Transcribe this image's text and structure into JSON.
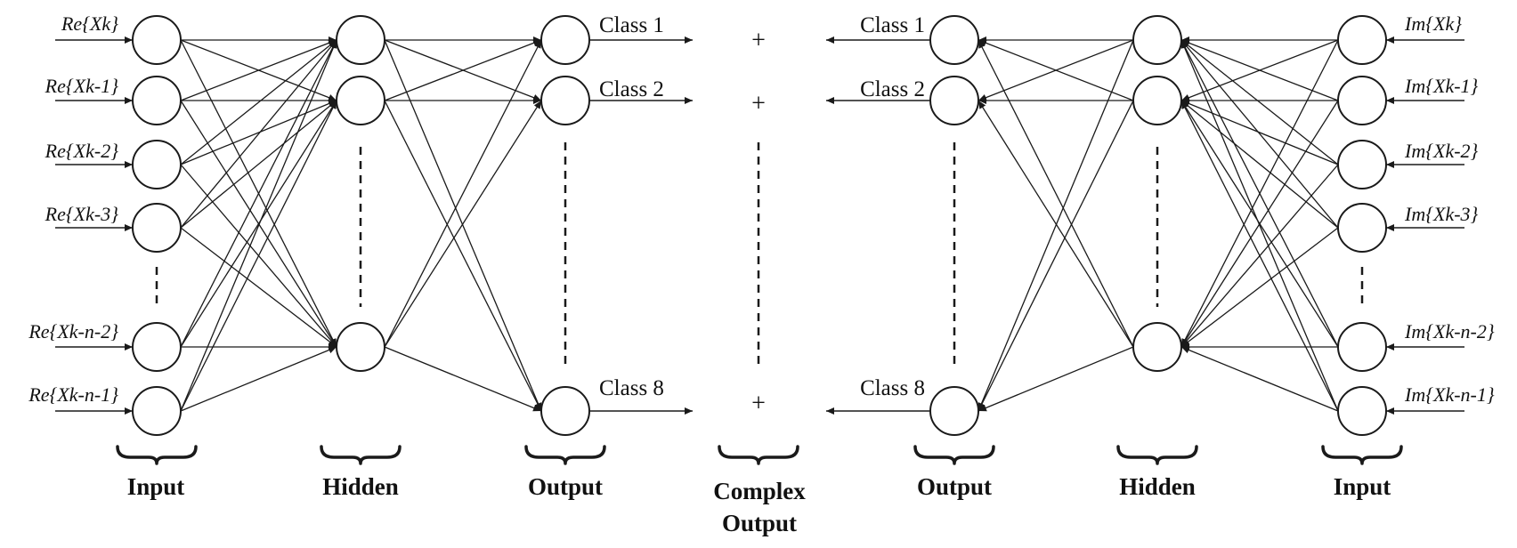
{
  "left_network": {
    "inputs": [
      "Re{Xk}",
      "Re{Xk-1}",
      "Re{Xk-2}",
      "Re{Xk-3}",
      "Re{Xk-n-2}",
      "Re{Xk-n-1}"
    ],
    "outputs": [
      "Class 1",
      "Class 2",
      "Class 8"
    ],
    "group_labels": {
      "input": "Input",
      "hidden": "Hidden",
      "output": "Output"
    }
  },
  "right_network": {
    "inputs": [
      "Im{Xk}",
      "Im{Xk-1}",
      "Im{Xk-2}",
      "Im{Xk-3}",
      "Im{Xk-n-2}",
      "Im{Xk-n-1}"
    ],
    "outputs": [
      "Class 1",
      "Class 2",
      "Class 8"
    ],
    "group_labels": {
      "input": "Input",
      "hidden": "Hidden",
      "output": "Output"
    }
  },
  "complex_output": {
    "line1": "Complex",
    "line2": "Output",
    "operators": [
      "+",
      "+",
      "+"
    ]
  },
  "colors": {
    "stroke": "#1a1a1a",
    "node_fill": "#ffffff",
    "background": "#ffffff"
  }
}
